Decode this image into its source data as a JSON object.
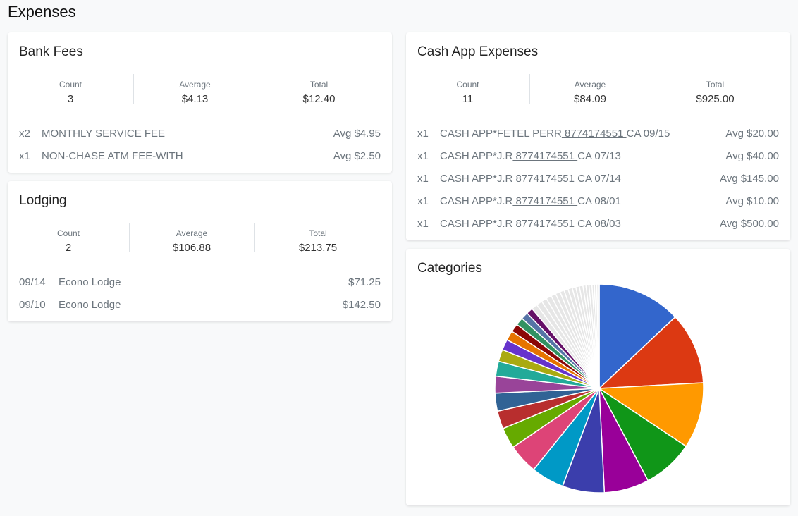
{
  "page": {
    "title": "Expenses"
  },
  "bank_fees": {
    "title": "Bank Fees",
    "stats": [
      {
        "label": "Count",
        "value": "3"
      },
      {
        "label": "Average",
        "value": "$4.13"
      },
      {
        "label": "Total",
        "value": "$12.40"
      }
    ],
    "rows": [
      {
        "qty": "x2",
        "desc": "MONTHLY SERVICE FEE",
        "amount": "Avg $4.95"
      },
      {
        "qty": "x1",
        "desc": "NON-CHASE ATM FEE-WITH",
        "amount": "Avg $2.50"
      }
    ]
  },
  "lodging": {
    "title": "Lodging",
    "stats": [
      {
        "label": "Count",
        "value": "2"
      },
      {
        "label": "Average",
        "value": "$106.88"
      },
      {
        "label": "Total",
        "value": "$213.75"
      }
    ],
    "rows": [
      {
        "date": "09/14",
        "desc": "Econo Lodge",
        "amount": "$71.25"
      },
      {
        "date": "09/10",
        "desc": "Econo Lodge",
        "amount": "$142.50"
      }
    ]
  },
  "cash_app": {
    "title": "Cash App Expenses",
    "stats": [
      {
        "label": "Count",
        "value": "11"
      },
      {
        "label": "Average",
        "value": "$84.09"
      },
      {
        "label": "Total",
        "value": "$925.00"
      }
    ],
    "rows": [
      {
        "qty": "x1",
        "pre": "CASH APP*FETEL PERR",
        "phone": " 8774174551 ",
        "post": "CA 09/15",
        "amount": "Avg $20.00"
      },
      {
        "qty": "x1",
        "pre": "CASH APP*J.R",
        "phone": " 8774174551 ",
        "post": "CA 07/13",
        "amount": "Avg $40.00"
      },
      {
        "qty": "x1",
        "pre": "CASH APP*J.R",
        "phone": " 8774174551 ",
        "post": "CA 07/14",
        "amount": "Avg $145.00"
      },
      {
        "qty": "x1",
        "pre": "CASH APP*J.R",
        "phone": " 8774174551 ",
        "post": "CA 08/01",
        "amount": "Avg $10.00"
      },
      {
        "qty": "x1",
        "pre": "CASH APP*J.R",
        "phone": " 8774174551 ",
        "post": "CA 08/03",
        "amount": "Avg $500.00"
      }
    ]
  },
  "categories": {
    "title": "Categories",
    "chart_data": {
      "type": "pie",
      "values": [
        14,
        12,
        11,
        8.5,
        7.5,
        7,
        5.5,
        5,
        3.5,
        3,
        3,
        2.8,
        2.5,
        2,
        1.8,
        1.6,
        1.4,
        1.3,
        1.2,
        1.1,
        1,
        1,
        0.9,
        0.9,
        0.8,
        0.8,
        0.7,
        0.7,
        0.7,
        0.6,
        0.6,
        0.6,
        0.5,
        0.5,
        0.5,
        0.4,
        0.4,
        0.4
      ],
      "colors": [
        "#3366cc",
        "#dc3912",
        "#ff9900",
        "#109618",
        "#990099",
        "#3b3eac",
        "#0099c6",
        "#dd4477",
        "#66aa00",
        "#b82e2e",
        "#316395",
        "#994499",
        "#22aa99",
        "#aaaa11",
        "#6633cc",
        "#e67300",
        "#8b0707",
        "#329262",
        "#5574a6",
        "#651067"
      ],
      "minor_color": "#e6e6e6"
    }
  }
}
